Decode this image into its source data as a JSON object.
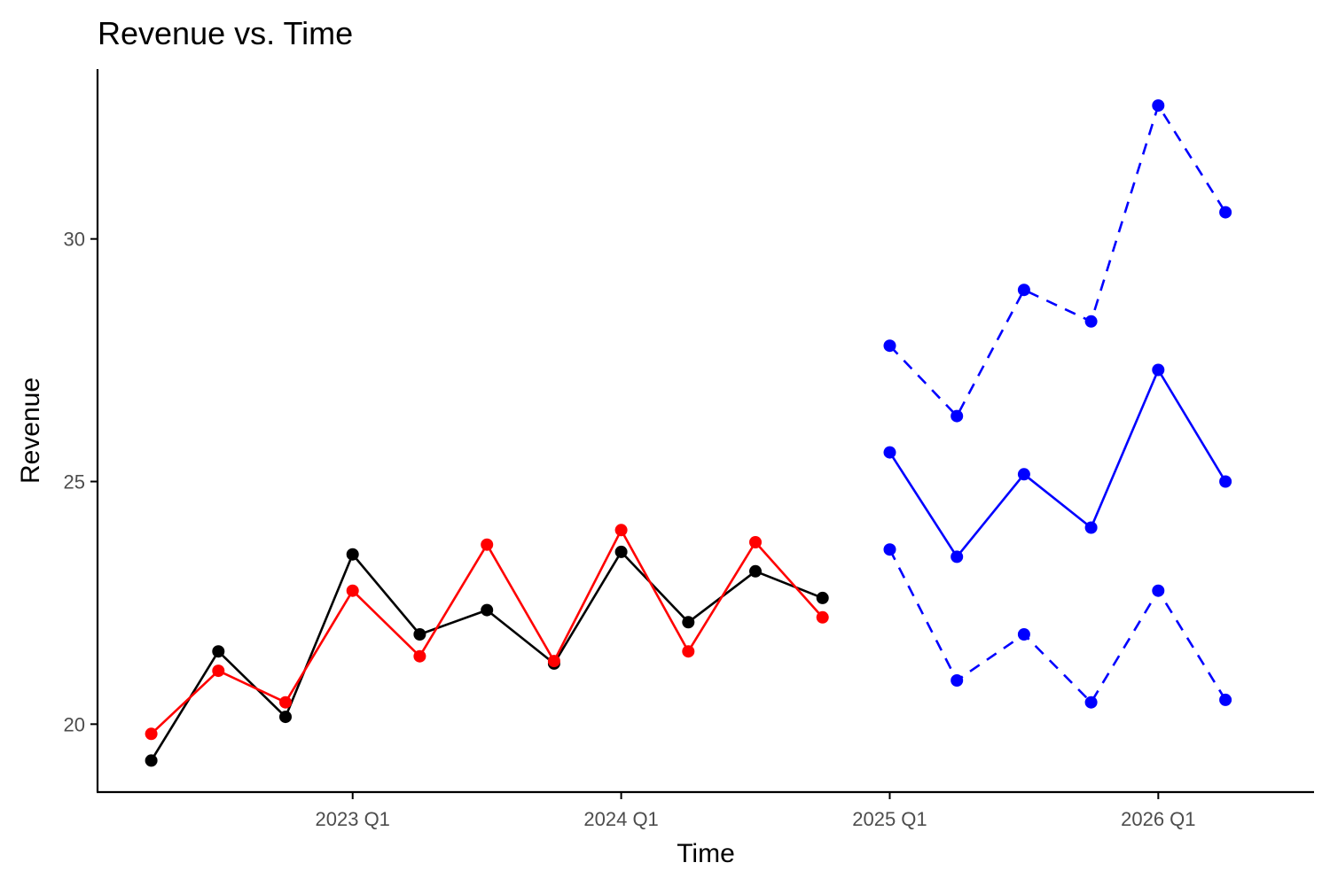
{
  "chart_data": {
    "type": "line",
    "title": "Revenue vs. Time",
    "xlabel": "Time",
    "ylabel": "Revenue",
    "x_ticks": [
      "2023 Q1",
      "2024 Q1",
      "2025 Q1",
      "2026 Q1"
    ],
    "y_ticks": [
      20,
      25,
      30
    ],
    "xlim": [
      "2022 Q1",
      "2026 Q3"
    ],
    "ylim": [
      18.6,
      33.5
    ],
    "grid": false,
    "legend": "none",
    "series": [
      {
        "color": "#000000",
        "line_style": "solid",
        "points": [
          {
            "x": "2022 Q2",
            "y": 19.25
          },
          {
            "x": "2022 Q3",
            "y": 21.5
          },
          {
            "x": "2022 Q4",
            "y": 20.15
          },
          {
            "x": "2023 Q1",
            "y": 23.5
          },
          {
            "x": "2023 Q2",
            "y": 21.85
          },
          {
            "x": "2023 Q3",
            "y": 22.35
          },
          {
            "x": "2023 Q4",
            "y": 21.25
          },
          {
            "x": "2024 Q1",
            "y": 23.55
          },
          {
            "x": "2024 Q2",
            "y": 22.1
          },
          {
            "x": "2024 Q3",
            "y": 23.15
          },
          {
            "x": "2024 Q4",
            "y": 22.6
          }
        ]
      },
      {
        "color": "#ff0000",
        "line_style": "solid",
        "points": [
          {
            "x": "2022 Q2",
            "y": 19.8
          },
          {
            "x": "2022 Q3",
            "y": 21.1
          },
          {
            "x": "2022 Q4",
            "y": 20.45
          },
          {
            "x": "2023 Q1",
            "y": 22.75
          },
          {
            "x": "2023 Q2",
            "y": 21.4
          },
          {
            "x": "2023 Q3",
            "y": 23.7
          },
          {
            "x": "2023 Q4",
            "y": 21.3
          },
          {
            "x": "2024 Q1",
            "y": 24.0
          },
          {
            "x": "2024 Q2",
            "y": 21.5
          },
          {
            "x": "2024 Q3",
            "y": 23.75
          },
          {
            "x": "2024 Q4",
            "y": 22.2
          }
        ]
      },
      {
        "color": "#0000ff",
        "line_style": "solid",
        "points": [
          {
            "x": "2025 Q1",
            "y": 25.6
          },
          {
            "x": "2025 Q2",
            "y": 23.45
          },
          {
            "x": "2025 Q3",
            "y": 25.15
          },
          {
            "x": "2025 Q4",
            "y": 24.05
          },
          {
            "x": "2026 Q1",
            "y": 27.3
          },
          {
            "x": "2026 Q2",
            "y": 25.0
          }
        ]
      },
      {
        "color": "#0000ff",
        "line_style": "dashed",
        "points": [
          {
            "x": "2025 Q1",
            "y": 27.8
          },
          {
            "x": "2025 Q2",
            "y": 26.35
          },
          {
            "x": "2025 Q3",
            "y": 28.95
          },
          {
            "x": "2025 Q4",
            "y": 28.3
          },
          {
            "x": "2026 Q1",
            "y": 32.75
          },
          {
            "x": "2026 Q2",
            "y": 30.55
          }
        ]
      },
      {
        "color": "#0000ff",
        "line_style": "dashed",
        "points": [
          {
            "x": "2025 Q1",
            "y": 23.6
          },
          {
            "x": "2025 Q2",
            "y": 20.9
          },
          {
            "x": "2025 Q3",
            "y": 21.85
          },
          {
            "x": "2025 Q4",
            "y": 20.45
          },
          {
            "x": "2026 Q1",
            "y": 22.75
          },
          {
            "x": "2026 Q2",
            "y": 20.5
          }
        ]
      }
    ]
  }
}
